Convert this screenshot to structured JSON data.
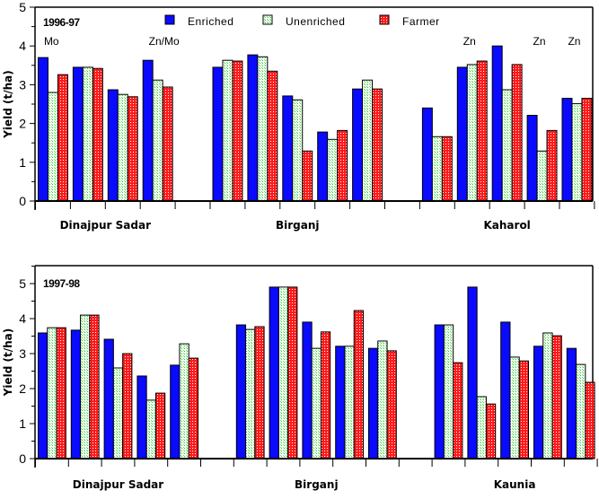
{
  "chart_data": [
    {
      "type": "bar",
      "title": "1996-97",
      "ylabel": "Yield (t/ha)",
      "ylim": [
        0,
        5
      ],
      "yticks": [
        "0",
        "1",
        "2",
        "3",
        "4",
        "5"
      ],
      "legend": {
        "placement": "top-center",
        "entries": [
          {
            "name": "Enriched",
            "color": "#0a0aff",
            "pattern": "solid"
          },
          {
            "name": "Unenriched",
            "color": "#22cc22",
            "pattern": "dotted-on-white"
          },
          {
            "name": "Farmer",
            "color": "#ff1a1a",
            "pattern": "dotted-red"
          }
        ]
      },
      "groups": [
        {
          "name": "Dinajpur Sadar",
          "sites": [
            {
              "annotation": "Mo",
              "values": [
                3.7,
                2.8,
                3.26
              ]
            },
            {
              "annotation": "",
              "values": [
                3.45,
                3.45,
                3.42
              ]
            },
            {
              "annotation": "",
              "values": [
                2.87,
                2.75,
                2.69
              ]
            },
            {
              "annotation": "Zn/Mo",
              "values": [
                3.63,
                3.12,
                2.94
              ]
            }
          ]
        },
        {
          "name": "Birganj",
          "sites": [
            {
              "annotation": "",
              "values": [
                3.45,
                3.63,
                3.61
              ]
            },
            {
              "annotation": "",
              "values": [
                3.77,
                3.72,
                3.35
              ]
            },
            {
              "annotation": "",
              "values": [
                2.71,
                2.61,
                1.29
              ]
            },
            {
              "annotation": "",
              "values": [
                1.78,
                1.59,
                1.82
              ]
            },
            {
              "annotation": "",
              "values": [
                2.89,
                3.12,
                2.89
              ]
            }
          ]
        },
        {
          "name": "Kaharol",
          "sites": [
            {
              "annotation": "",
              "values": [
                2.4,
                1.66,
                1.66
              ]
            },
            {
              "annotation": "Zn",
              "values": [
                3.45,
                3.52,
                3.61
              ]
            },
            {
              "annotation": "",
              "values": [
                4.0,
                2.87,
                3.52
              ]
            },
            {
              "annotation": "Zn",
              "values": [
                2.21,
                1.29,
                1.82
              ]
            },
            {
              "annotation": "Zn",
              "values": [
                2.65,
                2.51,
                2.65
              ]
            }
          ]
        }
      ]
    },
    {
      "type": "bar",
      "title": "1997-98",
      "ylabel": "Yield (t/ha)",
      "ylim": [
        0,
        5.5
      ],
      "yticks": [
        "0",
        "1",
        "2",
        "3",
        "4",
        "5"
      ],
      "groups": [
        {
          "name": "Dinajpur Sadar",
          "sites": [
            {
              "values": [
                3.59,
                3.74,
                3.74
              ]
            },
            {
              "values": [
                3.67,
                4.1,
                4.1
              ]
            },
            {
              "values": [
                3.41,
                2.59,
                3.0
              ]
            },
            {
              "values": [
                2.36,
                1.67,
                1.87
              ]
            },
            {
              "values": [
                2.67,
                3.28,
                2.87
              ]
            }
          ]
        },
        {
          "name": "Birganj",
          "sites": [
            {
              "values": [
                3.82,
                3.69,
                3.77
              ]
            },
            {
              "values": [
                4.9,
                4.9,
                4.9
              ]
            },
            {
              "values": [
                3.9,
                3.15,
                3.62
              ]
            },
            {
              "values": [
                3.21,
                3.21,
                4.23
              ]
            },
            {
              "values": [
                3.15,
                3.36,
                3.08
              ]
            }
          ]
        },
        {
          "name": "Kaunia",
          "sites": [
            {
              "values": [
                3.82,
                3.82,
                2.74
              ]
            },
            {
              "values": [
                4.9,
                1.77,
                1.56
              ]
            },
            {
              "values": [
                3.9,
                2.9,
                2.79
              ]
            },
            {
              "values": [
                3.21,
                3.59,
                3.51
              ]
            },
            {
              "values": [
                3.15,
                2.69,
                2.18
              ]
            }
          ]
        }
      ]
    }
  ]
}
